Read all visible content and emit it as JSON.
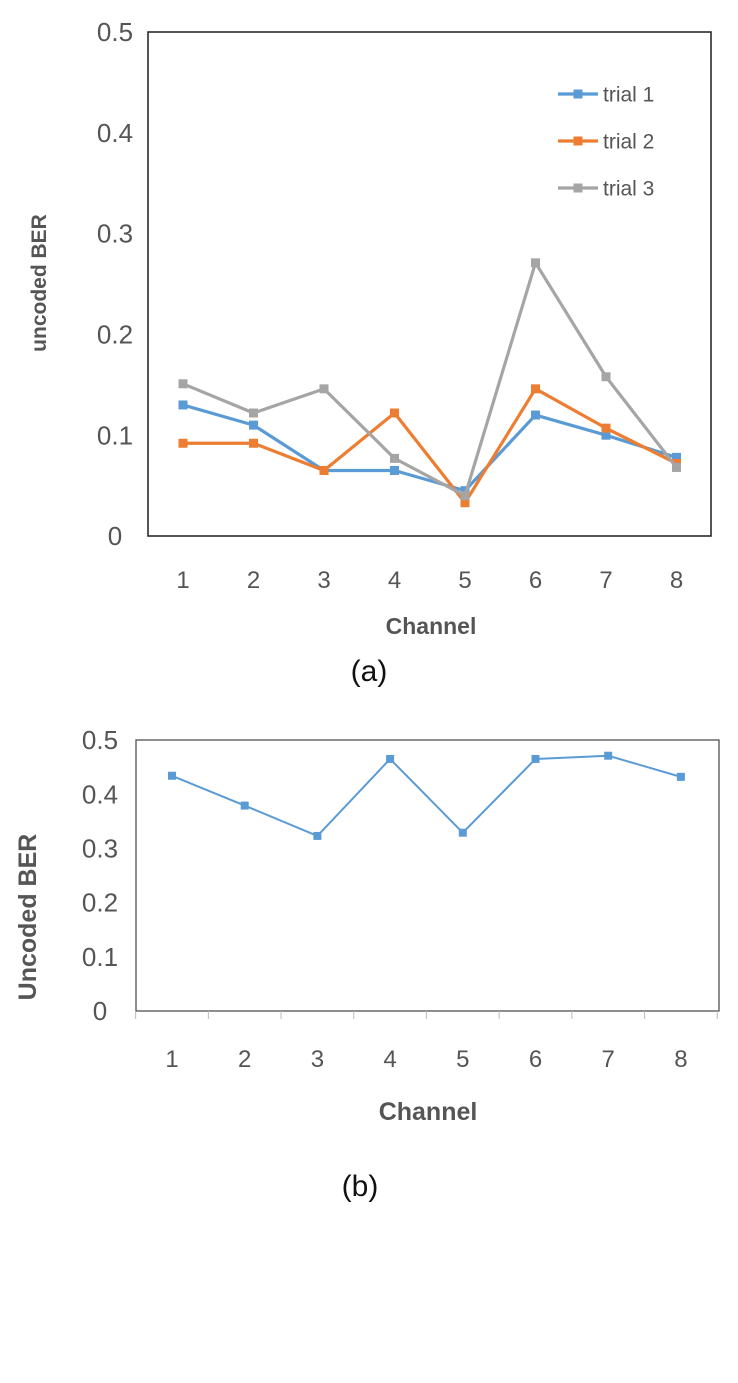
{
  "figure": {
    "panels": [
      "(a)",
      "(b)"
    ]
  },
  "chart_data": [
    {
      "type": "line",
      "panel_label": "(a)",
      "title": "",
      "xlabel": "Channel",
      "ylabel": "uncoded BER",
      "categories": [
        "1",
        "2",
        "3",
        "4",
        "5",
        "6",
        "7",
        "8"
      ],
      "yticks": [
        "0",
        "0.1",
        "0.2",
        "0.3",
        "0.4",
        "0.5"
      ],
      "ylim": [
        0,
        0.5
      ],
      "grid": false,
      "legend": "top-right",
      "series": [
        {
          "name": "trial 1",
          "color": "#5b9bd5",
          "values": [
            0.13,
            0.11,
            0.065,
            0.065,
            0.045,
            0.12,
            0.1,
            0.078
          ]
        },
        {
          "name": "trial 2",
          "color": "#ed7d31",
          "values": [
            0.092,
            0.092,
            0.065,
            0.122,
            0.033,
            0.146,
            0.107,
            0.072
          ]
        },
        {
          "name": "trial 3",
          "color": "#a5a5a5",
          "values": [
            0.151,
            0.122,
            0.146,
            0.077,
            0.04,
            0.271,
            0.158,
            0.068
          ]
        }
      ]
    },
    {
      "type": "line",
      "panel_label": "(b)",
      "title": "",
      "xlabel": "Channel",
      "ylabel": "Uncoded BER",
      "categories": [
        "1",
        "2",
        "3",
        "4",
        "5",
        "6",
        "7",
        "8"
      ],
      "yticks": [
        "0",
        "0.1",
        "0.2",
        "0.3",
        "0.4",
        "0.5"
      ],
      "ylim": [
        0,
        0.5
      ],
      "grid": false,
      "legend": "none",
      "series": [
        {
          "color": "#5b9bd5",
          "values": [
            0.434,
            0.379,
            0.323,
            0.465,
            0.329,
            0.465,
            0.471,
            0.432
          ]
        }
      ]
    }
  ]
}
